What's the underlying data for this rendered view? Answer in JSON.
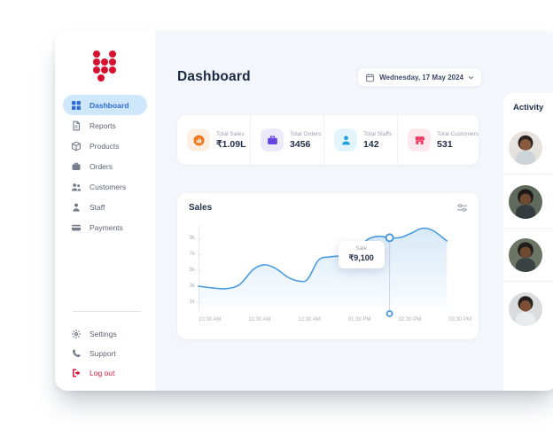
{
  "app": {
    "bg": "#f3f6fa",
    "accent": "#2e6ed6"
  },
  "sidebar": {
    "logo": {
      "name": "brand-logo-dots",
      "color": "#d8102f"
    },
    "items": [
      {
        "label": "Dashboard",
        "icon": "grid-icon",
        "active": true
      },
      {
        "label": "Reports",
        "icon": "document-icon"
      },
      {
        "label": "Products",
        "icon": "box-icon"
      },
      {
        "label": "Orders",
        "icon": "briefcase-icon"
      },
      {
        "label": "Customers",
        "icon": "people-icon"
      },
      {
        "label": "Staff",
        "icon": "person-icon"
      },
      {
        "label": "Payments",
        "icon": "card-icon"
      }
    ],
    "footer_items": [
      {
        "label": "Settings",
        "icon": "gear-icon"
      },
      {
        "label": "Support",
        "icon": "phone-icon"
      },
      {
        "label": "Log out",
        "icon": "logout-icon",
        "color": "#e0193c"
      }
    ]
  },
  "header": {
    "title": "Dashboard",
    "date_label": "Wednesday, 17 May 2024"
  },
  "stats": {
    "items": [
      {
        "label": "Total Sales",
        "value": "₹1.09L",
        "icon": "sales-chart-badge-icon",
        "tile_bg": "#fdf0e3",
        "icon_color": "#f0791f"
      },
      {
        "label": "Total Orders",
        "value": "3456",
        "icon": "briefcase-icon",
        "tile_bg": "#ece9fb",
        "icon_color": "#6644e0"
      },
      {
        "label": "Total Staffs",
        "value": "142",
        "icon": "person-icon",
        "tile_bg": "#e3f4fc",
        "icon_color": "#1da2dd"
      },
      {
        "label": "Total Customers",
        "value": "531",
        "icon": "storefront-icon",
        "tile_bg": "#fde8ee",
        "icon_color": "#ee3d63"
      }
    ]
  },
  "chart_data": {
    "type": "area",
    "title": "Sales",
    "x_labels": [
      "10:30 AM",
      "11:30 AM",
      "12:30 AM",
      "01:30 PM",
      "02:30 PM",
      "03:30 PM"
    ],
    "y_tick_labels": [
      "9k",
      "7k",
      "5k",
      "3k",
      "1k"
    ],
    "y_tick_values": [
      9000,
      7000,
      5000,
      3000,
      1000
    ],
    "ylim": [
      0,
      10600
    ],
    "grid": false,
    "legend": false,
    "line_color": "#4a9bde",
    "points": [
      [
        0.0,
        3000
      ],
      [
        0.05,
        2800
      ],
      [
        0.1,
        2700
      ],
      [
        0.15,
        3200
      ],
      [
        0.2,
        5100
      ],
      [
        0.24,
        5700
      ],
      [
        0.28,
        5300
      ],
      [
        0.33,
        4100
      ],
      [
        0.37,
        3650
      ],
      [
        0.4,
        3900
      ],
      [
        0.44,
        6300
      ],
      [
        0.48,
        6700
      ],
      [
        0.53,
        6900
      ],
      [
        0.58,
        7600
      ],
      [
        0.62,
        8900
      ],
      [
        0.66,
        9300
      ],
      [
        0.7,
        9100
      ],
      [
        0.74,
        9150
      ],
      [
        0.78,
        9700
      ],
      [
        0.82,
        10300
      ],
      [
        0.86,
        10000
      ],
      [
        0.91,
        8700
      ]
    ],
    "marker_index": 16,
    "tooltip": {
      "label": "Sale",
      "value": "₹9,100"
    }
  },
  "activity": {
    "title": "Activity",
    "avatars": [
      {
        "name": "user-avatar-1",
        "bg": "#e6e2dd",
        "skin": "#8a5a3c",
        "hair": "#2a221f",
        "shirt": "#ccd3d9"
      },
      {
        "name": "user-avatar-2",
        "bg": "#5f6a5c",
        "skin": "#6e4a30",
        "hair": "#1d1917",
        "shirt": "#343c40"
      },
      {
        "name": "user-avatar-3",
        "bg": "#6d7565",
        "skin": "#6e4a30",
        "hair": "#201c1a",
        "shirt": "#3a4244"
      },
      {
        "name": "user-avatar-4",
        "bg": "#d9dbdd",
        "skin": "#7c4f34",
        "hair": "#241e1c",
        "shirt": "#e9ebec"
      }
    ]
  }
}
